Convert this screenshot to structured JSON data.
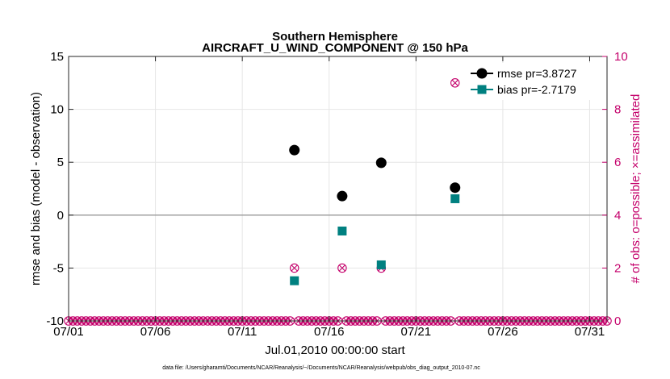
{
  "chart_data": {
    "type": "scatter",
    "title": "Southern Hemisphere",
    "subtitle": "AIRCRAFT_U_WIND_COMPONENT @ 150 hPa",
    "xlabel": "Jul.01,2010 00:00:00 start",
    "ylabel": "rmse and bias (model - observation)",
    "ylabel_right": "# of obs: o=possible; ×=assimilated",
    "xlim": [
      1,
      32
    ],
    "ylim": [
      -10,
      15
    ],
    "ylim_right": [
      0,
      10
    ],
    "x_ticks": [
      1,
      6,
      11,
      16,
      21,
      26,
      31
    ],
    "x_tick_labels": [
      "07/01",
      "07/06",
      "07/11",
      "07/16",
      "07/21",
      "07/26",
      "07/31"
    ],
    "y_ticks": [
      -10,
      -5,
      0,
      5,
      10,
      15
    ],
    "y_ticks_right": [
      0,
      2,
      4,
      6,
      8,
      10
    ],
    "grid": true,
    "legend_position": "top-right",
    "colors": {
      "rmse": "#000000",
      "bias": "#008080",
      "obs": "#c4006b",
      "zero_line": "#a0a0a0"
    },
    "series": [
      {
        "name": "rmse pr=3.8727",
        "x": [
          14,
          16.75,
          19,
          23.25
        ],
        "values": [
          6.15,
          1.8,
          4.95,
          2.6
        ]
      },
      {
        "name": "bias pr=-2.7179",
        "x": [
          14,
          16.75,
          19,
          23.25
        ],
        "values": [
          -6.2,
          -1.5,
          -4.7,
          1.55
        ]
      }
    ],
    "obs_count": {
      "x_start": 1,
      "x_step": 0.25,
      "nonzero": [
        {
          "x": 14,
          "possible": 2,
          "assimilated": 2
        },
        {
          "x": 16.75,
          "possible": 2,
          "assimilated": 2
        },
        {
          "x": 19,
          "possible": 2,
          "assimilated": 2
        },
        {
          "x": 23.25,
          "possible": 9,
          "assimilated": 9
        }
      ],
      "zero_value": 0
    }
  },
  "footnote": "data file: /Users/gharamti/Documents/NCAR/Reanalysis/~/Documents/NCAR/Reanalysis/webpub/obs_diag_output_2010-07.nc"
}
